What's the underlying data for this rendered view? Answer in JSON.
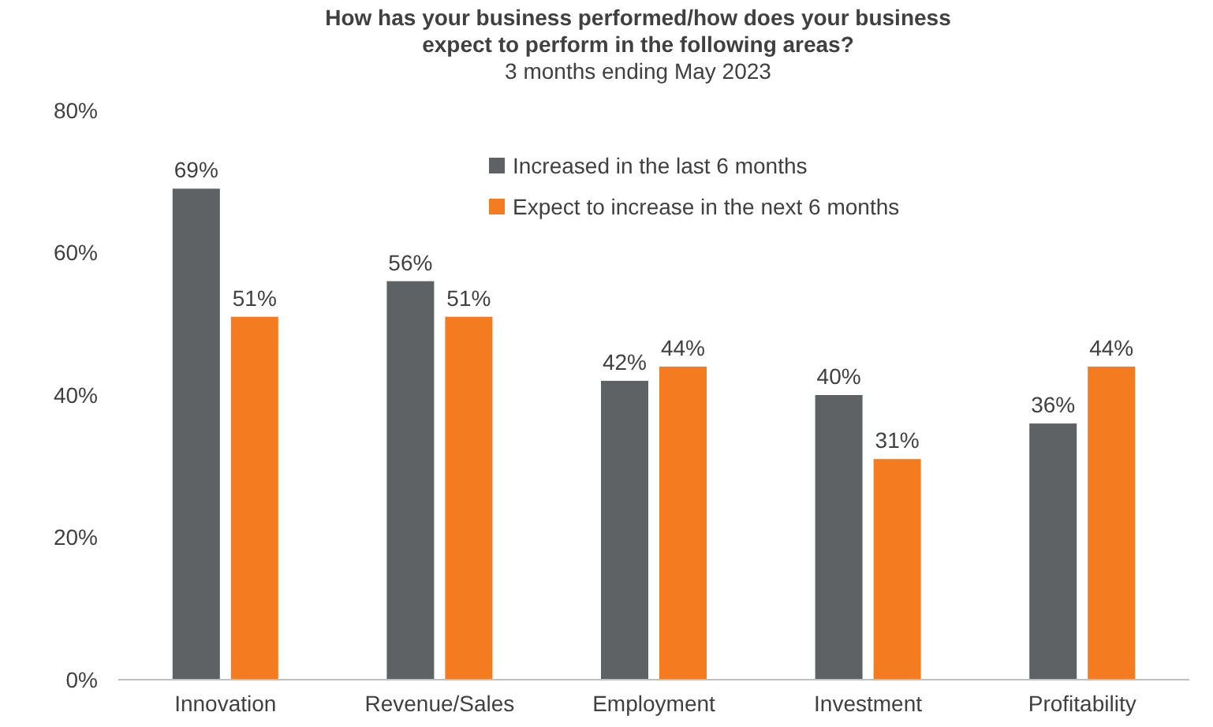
{
  "chart_data": {
    "type": "bar",
    "title": "How has your business performed/how does your business expect to perform in the following areas?",
    "subtitle": "3 months ending May 2023",
    "categories": [
      "Innovation",
      "Revenue/Sales",
      "Employment",
      "Investment",
      "Profitability"
    ],
    "series": [
      {
        "name": "Increased in the last 6 months",
        "color": "#5f6264",
        "values": [
          69,
          56,
          42,
          40,
          36
        ]
      },
      {
        "name": "Expect to increase in the next 6 months",
        "color": "#f47b20",
        "values": [
          51,
          51,
          44,
          31,
          44
        ]
      }
    ],
    "value_labels": [
      [
        "69%",
        "56%",
        "42%",
        "40%",
        "36%"
      ],
      [
        "51%",
        "51%",
        "44%",
        "31%",
        "44%"
      ]
    ],
    "ylim": [
      0,
      80
    ],
    "yticks": [
      {
        "value": 0,
        "label": "0%"
      },
      {
        "value": 20,
        "label": "20%"
      },
      {
        "value": 40,
        "label": "40%"
      },
      {
        "value": 60,
        "label": "60%"
      },
      {
        "value": 80,
        "label": "80%"
      }
    ],
    "grid": false,
    "legend": "top"
  }
}
